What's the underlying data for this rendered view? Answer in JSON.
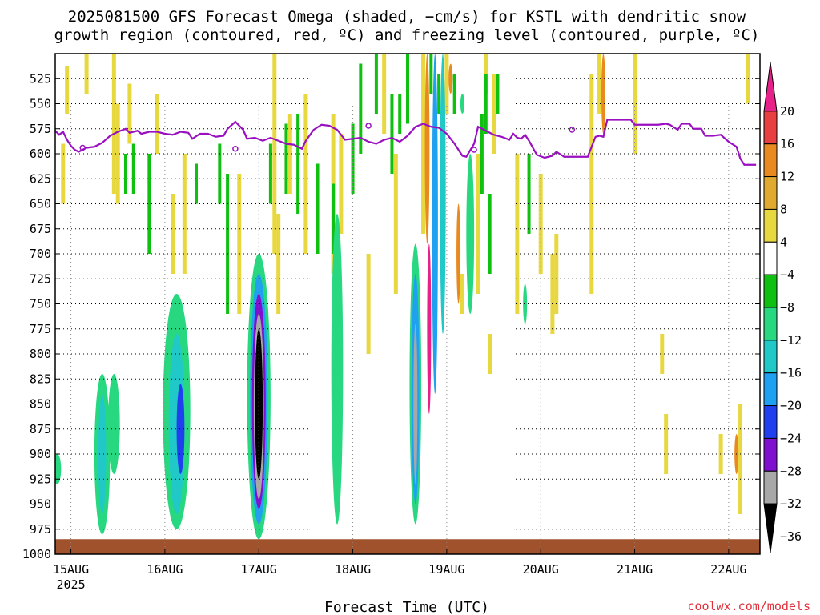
{
  "title": {
    "line1": "2025081500 GFS Forecast Omega (shaded, −cm/s) for KSTL with dendritic snow",
    "line2": "growth region (contoured, red, ºC) and freezing level (contoured, purple, ºC)"
  },
  "credit": "coolwx.com/models",
  "chart_data": {
    "type": "heatmap",
    "xlabel": "Forecast Time (UTC)",
    "x_ticks": [
      "15AUG",
      "16AUG",
      "17AUG",
      "18AUG",
      "19AUG",
      "20AUG",
      "21AUG",
      "22AUG"
    ],
    "x_year": "2025",
    "x_range_hours": [
      0,
      180
    ],
    "y_ticks": [
      525,
      550,
      575,
      600,
      625,
      650,
      675,
      700,
      725,
      750,
      775,
      800,
      825,
      850,
      875,
      900,
      925,
      950,
      975,
      1000
    ],
    "y_range_hPa": [
      500,
      1000
    ],
    "grid": true,
    "colorbar": {
      "labels": [
        "20",
        "16",
        "12",
        "8",
        "4",
        "−4",
        "−8",
        "−12",
        "−16",
        "−20",
        "−24",
        "−28",
        "−32",
        "−36"
      ],
      "colors": [
        "#e8208a",
        "#e84040",
        "#e88a20",
        "#e0aa30",
        "#e8d840",
        "#ffffff",
        "#10c010",
        "#28d880",
        "#20c8c8",
        "#20a0f0",
        "#2040f0",
        "#8010d0",
        "#a8a8a8",
        "#000000"
      ]
    },
    "freezing_level_hPa": [
      [
        0,
        577
      ],
      [
        1,
        581
      ],
      [
        2,
        578
      ],
      [
        3,
        586
      ],
      [
        4,
        592
      ],
      [
        5,
        596
      ],
      [
        6,
        598
      ],
      [
        8,
        594
      ],
      [
        10,
        593
      ],
      [
        12,
        589
      ],
      [
        14,
        582
      ],
      [
        16,
        578
      ],
      [
        18,
        575
      ],
      [
        19,
        579
      ],
      [
        21,
        577
      ],
      [
        22,
        580
      ],
      [
        24,
        578
      ],
      [
        26,
        578
      ],
      [
        28,
        580
      ],
      [
        30,
        581
      ],
      [
        32,
        578
      ],
      [
        34,
        579
      ],
      [
        35,
        585
      ],
      [
        37,
        580
      ],
      [
        39,
        580
      ],
      [
        41,
        583
      ],
      [
        43,
        582
      ],
      [
        44,
        575
      ],
      [
        46,
        568
      ],
      [
        48,
        576
      ],
      [
        49,
        585
      ],
      [
        51,
        584
      ],
      [
        53,
        587
      ],
      [
        55,
        584
      ],
      [
        57,
        587
      ],
      [
        59,
        590
      ],
      [
        61,
        591
      ],
      [
        63,
        595
      ],
      [
        64,
        587
      ],
      [
        66,
        576
      ],
      [
        68,
        571
      ],
      [
        70,
        572
      ],
      [
        72,
        576
      ],
      [
        74,
        586
      ],
      [
        76,
        585
      ],
      [
        78,
        584
      ],
      [
        80,
        588
      ],
      [
        82,
        590
      ],
      [
        84,
        586
      ],
      [
        86,
        584
      ],
      [
        88,
        588
      ],
      [
        90,
        582
      ],
      [
        92,
        573
      ],
      [
        94,
        570
      ],
      [
        96,
        573
      ],
      [
        98,
        574
      ],
      [
        100,
        580
      ],
      [
        102,
        590
      ],
      [
        104,
        602
      ],
      [
        105,
        603
      ],
      [
        107,
        590
      ],
      [
        108,
        573
      ],
      [
        110,
        577
      ],
      [
        112,
        581
      ],
      [
        114,
        583
      ],
      [
        116,
        586
      ],
      [
        117,
        580
      ],
      [
        118,
        584
      ],
      [
        119,
        585
      ],
      [
        120,
        581
      ],
      [
        121,
        587
      ],
      [
        123,
        601
      ],
      [
        125,
        604
      ],
      [
        127,
        602
      ],
      [
        128,
        598
      ],
      [
        130,
        603
      ],
      [
        132,
        603
      ],
      [
        133,
        603
      ],
      [
        136,
        603
      ],
      [
        138,
        583
      ],
      [
        139,
        582
      ],
      [
        140,
        583
      ],
      [
        141,
        566
      ],
      [
        142,
        566
      ],
      [
        145,
        566
      ],
      [
        147,
        566
      ],
      [
        148,
        571
      ],
      [
        150,
        571
      ],
      [
        152,
        571
      ],
      [
        154,
        571
      ],
      [
        156,
        570
      ],
      [
        157,
        571
      ],
      [
        159,
        576
      ],
      [
        160,
        570
      ],
      [
        162,
        570
      ],
      [
        163,
        575
      ],
      [
        165,
        575
      ],
      [
        166,
        582
      ],
      [
        168,
        582
      ],
      [
        170,
        581
      ],
      [
        172,
        588
      ],
      [
        174,
        593
      ],
      [
        175,
        605
      ],
      [
        176,
        611
      ],
      [
        178,
        611
      ],
      [
        179,
        611
      ]
    ],
    "omega_cells": [
      {
        "t": 0.5,
        "p0": 900,
        "p1": 930,
        "w": 2,
        "v": -8
      },
      {
        "t": 12,
        "p0": 820,
        "p1": 980,
        "w": 4,
        "v": -8
      },
      {
        "t": 12,
        "p0": 840,
        "p1": 960,
        "w": 2,
        "v": -12
      },
      {
        "t": 15,
        "p0": 820,
        "p1": 920,
        "w": 3,
        "v": -8
      },
      {
        "t": 31,
        "p0": 740,
        "p1": 975,
        "w": 7,
        "v": -8
      },
      {
        "t": 31,
        "p0": 780,
        "p1": 960,
        "w": 4,
        "v": -12
      },
      {
        "t": 32,
        "p0": 830,
        "p1": 920,
        "w": 2,
        "v": -20
      },
      {
        "t": 52,
        "p0": 700,
        "p1": 985,
        "w": 6,
        "v": -8
      },
      {
        "t": 52,
        "p0": 720,
        "p1": 970,
        "w": 4.5,
        "v": -16
      },
      {
        "t": 52,
        "p0": 740,
        "p1": 955,
        "w": 3.5,
        "v": -24
      },
      {
        "t": 52,
        "p0": 760,
        "p1": 945,
        "w": 2.6,
        "v": -28
      },
      {
        "t": 52,
        "p0": 775,
        "p1": 925,
        "w": 2,
        "v": -32
      },
      {
        "t": 52,
        "p0": 790,
        "p1": 905,
        "w": 1.6,
        "v": -36
      },
      {
        "t": 72,
        "p0": 660,
        "p1": 970,
        "w": 3,
        "v": -8
      },
      {
        "t": 92,
        "p0": 690,
        "p1": 970,
        "w": 3,
        "v": -8
      },
      {
        "t": 92,
        "p0": 720,
        "p1": 950,
        "w": 2,
        "v": -16
      },
      {
        "t": 92,
        "p0": 770,
        "p1": 930,
        "w": 1,
        "v": -28
      },
      {
        "t": 95,
        "p0": 500,
        "p1": 690,
        "w": 1.2,
        "v": 12
      },
      {
        "t": 95.5,
        "p0": 690,
        "p1": 860,
        "w": 1,
        "v": 20
      },
      {
        "t": 97,
        "p0": 500,
        "p1": 840,
        "w": 1.5,
        "v": -16
      },
      {
        "t": 99,
        "p0": 500,
        "p1": 780,
        "w": 1.5,
        "v": -12
      },
      {
        "t": 101,
        "p0": 510,
        "p1": 540,
        "w": 1,
        "v": 12
      },
      {
        "t": 103,
        "p0": 650,
        "p1": 750,
        "w": 1,
        "v": 12
      },
      {
        "t": 106,
        "p0": 600,
        "p1": 760,
        "w": 2,
        "v": -8
      },
      {
        "t": 104,
        "p0": 540,
        "p1": 560,
        "w": 1,
        "v": -8
      },
      {
        "t": 120,
        "p0": 730,
        "p1": 770,
        "w": 1,
        "v": -8
      },
      {
        "t": 140,
        "p0": 500,
        "p1": 580,
        "w": 1,
        "v": 12
      },
      {
        "t": 174,
        "p0": 880,
        "p1": 920,
        "w": 1,
        "v": 12
      }
    ],
    "yellow_streaks": [
      [
        3,
        512,
        560
      ],
      [
        2,
        590,
        650
      ],
      [
        8,
        500,
        540
      ],
      [
        15,
        500,
        640
      ],
      [
        16,
        550,
        650
      ],
      [
        19,
        530,
        590
      ],
      [
        26,
        540,
        600
      ],
      [
        30,
        640,
        720
      ],
      [
        33,
        600,
        720
      ],
      [
        47,
        620,
        760
      ],
      [
        56,
        500,
        700
      ],
      [
        57,
        660,
        760
      ],
      [
        60,
        560,
        640
      ],
      [
        64,
        540,
        700
      ],
      [
        71,
        560,
        720
      ],
      [
        73,
        580,
        680
      ],
      [
        80,
        700,
        800
      ],
      [
        84,
        500,
        580
      ],
      [
        87,
        600,
        740
      ],
      [
        94,
        500,
        680
      ],
      [
        100,
        500,
        560
      ],
      [
        104,
        720,
        760
      ],
      [
        108,
        600,
        740
      ],
      [
        110,
        500,
        540
      ],
      [
        111,
        780,
        820
      ],
      [
        112,
        520,
        600
      ],
      [
        118,
        600,
        760
      ],
      [
        124,
        620,
        720
      ],
      [
        127,
        700,
        780
      ],
      [
        128,
        680,
        760
      ],
      [
        137,
        520,
        740
      ],
      [
        139,
        500,
        560
      ],
      [
        148,
        500,
        600
      ],
      [
        155,
        780,
        820
      ],
      [
        156,
        860,
        920
      ],
      [
        170,
        880,
        920
      ],
      [
        175,
        850,
        960
      ],
      [
        177,
        500,
        550
      ],
      [
        182,
        840,
        880
      ]
    ],
    "green_streaks": [
      [
        18,
        600,
        640
      ],
      [
        20,
        590,
        640
      ],
      [
        24,
        600,
        700
      ],
      [
        36,
        610,
        650
      ],
      [
        42,
        590,
        650
      ],
      [
        44,
        620,
        760
      ],
      [
        55,
        590,
        650
      ],
      [
        59,
        570,
        640
      ],
      [
        62,
        560,
        660
      ],
      [
        67,
        610,
        700
      ],
      [
        71,
        630,
        700
      ],
      [
        76,
        570,
        640
      ],
      [
        78,
        510,
        600
      ],
      [
        82,
        500,
        560
      ],
      [
        86,
        540,
        620
      ],
      [
        88,
        540,
        580
      ],
      [
        90,
        500,
        570
      ],
      [
        96,
        500,
        540
      ],
      [
        98,
        520,
        560
      ],
      [
        102,
        520,
        560
      ],
      [
        106,
        640,
        680
      ],
      [
        109,
        560,
        640
      ],
      [
        110,
        520,
        580
      ],
      [
        111,
        640,
        720
      ],
      [
        113,
        520,
        560
      ],
      [
        121,
        600,
        680
      ]
    ],
    "ground_band": [
      985,
      1000
    ]
  }
}
